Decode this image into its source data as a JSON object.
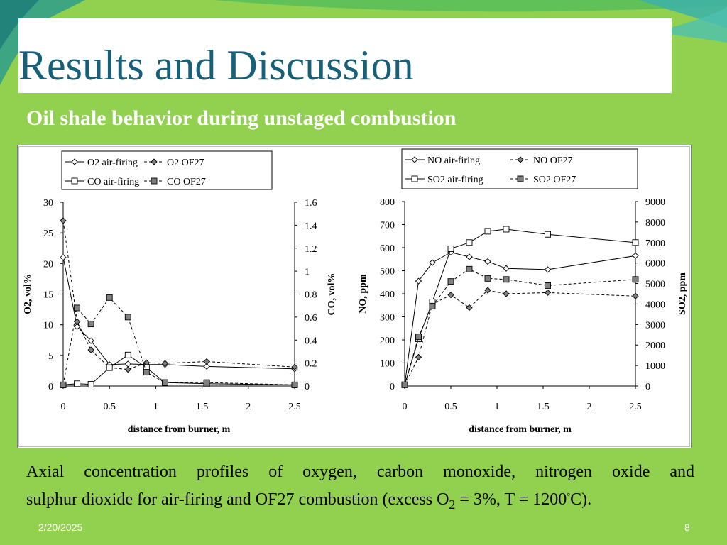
{
  "slide": {
    "title": "Results and Discussion",
    "subtitle": "Oil shale behavior during unstaged combustion",
    "caption_line1": "Axial concentration profiles of oxygen, carbon monoxide, nitrogen oxide and",
    "caption_line2_a": "sulphur dioxide for air-firing and OF27 combustion (excess O",
    "caption_line2_sub": "2",
    "caption_line2_b": " = 3%, T = 1200",
    "caption_line2_sup": "°",
    "caption_line2_c": "C).",
    "date": "2/20/2025",
    "page": "8",
    "colors": {
      "background": "#92d050",
      "title": "#17607a",
      "accent_teal": "#33aa99"
    }
  },
  "chart_data": [
    {
      "type": "line",
      "xlabel": "distance from burner, m",
      "ylabel": "O2, vol%",
      "y2label": "CO, vol%",
      "xlim": [
        0,
        2.5
      ],
      "xticks": [
        "0",
        "0.5",
        "1",
        "1.5",
        "2",
        "2.5"
      ],
      "ylim": [
        0,
        30
      ],
      "yticks": [
        "0",
        "5",
        "10",
        "15",
        "20",
        "25",
        "30"
      ],
      "y2lim": [
        0,
        1.6
      ],
      "y2ticks": [
        "0",
        "0.2",
        "0.4",
        "0.6",
        "0.8",
        "1",
        "1.2",
        "1.4",
        "1.6"
      ],
      "legend_position": "top",
      "series": [
        {
          "name": "O2 air-firing",
          "axis": "left",
          "marker": "diamond",
          "dash": false,
          "x": [
            0,
            0.15,
            0.3,
            0.5,
            0.7,
            0.9,
            1.1,
            1.55,
            2.5
          ],
          "y": [
            21,
            9.7,
            7.4,
            3.5,
            3.6,
            3.5,
            3.5,
            3.2,
            2.8
          ]
        },
        {
          "name": "O2 OF27",
          "axis": "left",
          "marker": "diamond-filled",
          "dash": true,
          "x": [
            0,
            0.15,
            0.3,
            0.5,
            0.7,
            0.9,
            1.1,
            1.55,
            2.5
          ],
          "y": [
            27,
            10.5,
            5.9,
            3.0,
            2.7,
            3.8,
            3.7,
            4.0,
            3.1
          ]
        },
        {
          "name": "CO air-firing",
          "axis": "right",
          "marker": "square",
          "dash": false,
          "x": [
            0,
            0.15,
            0.3,
            0.5,
            0.7,
            0.9,
            1.1,
            1.55,
            2.5
          ],
          "y": [
            0.01,
            0.02,
            0.015,
            0.16,
            0.27,
            0.16,
            0.03,
            0.02,
            0.01
          ]
        },
        {
          "name": "CO OF27",
          "axis": "right",
          "marker": "square-filled",
          "dash": true,
          "x": [
            0,
            0.15,
            0.3,
            0.5,
            0.7,
            0.9,
            1.1,
            1.55,
            2.5
          ],
          "y": [
            0.01,
            0.68,
            0.54,
            0.77,
            0.6,
            0.12,
            0.03,
            0.03,
            0.01
          ]
        }
      ]
    },
    {
      "type": "line",
      "xlabel": "distance from burner, m",
      "ylabel": "NO, ppm",
      "y2label": "SO2, ppm",
      "xlim": [
        0,
        2.5
      ],
      "xticks": [
        "0",
        "0.5",
        "1",
        "1.5",
        "2",
        "2.5"
      ],
      "ylim": [
        0,
        800
      ],
      "yticks": [
        "0",
        "100",
        "200",
        "300",
        "400",
        "500",
        "600",
        "700",
        "800"
      ],
      "y2lim": [
        0,
        9000
      ],
      "y2ticks": [
        "0",
        "1000",
        "2000",
        "3000",
        "4000",
        "5000",
        "6000",
        "7000",
        "8000",
        "9000"
      ],
      "legend_position": "top",
      "series": [
        {
          "name": "NO air-firing",
          "axis": "left",
          "marker": "diamond",
          "dash": false,
          "x": [
            0,
            0.15,
            0.3,
            0.5,
            0.7,
            0.9,
            1.1,
            1.55,
            2.5
          ],
          "y": [
            5,
            455,
            535,
            580,
            560,
            540,
            510,
            505,
            565
          ]
        },
        {
          "name": "NO OF27",
          "axis": "left",
          "marker": "diamond-filled",
          "dash": true,
          "x": [
            0,
            0.15,
            0.3,
            0.5,
            0.7,
            0.9,
            1.1,
            1.55,
            2.5
          ],
          "y": [
            5,
            125,
            355,
            395,
            340,
            415,
            400,
            405,
            390
          ]
        },
        {
          "name": "SO2 air-firing",
          "axis": "right",
          "marker": "square",
          "dash": false,
          "x": [
            0,
            0.15,
            0.3,
            0.5,
            0.7,
            0.9,
            1.1,
            1.55,
            2.5
          ],
          "y": [
            60,
            2300,
            4100,
            6700,
            7000,
            7550,
            7650,
            7400,
            7000
          ]
        },
        {
          "name": "SO2 OF27",
          "axis": "right",
          "marker": "square-filled",
          "dash": true,
          "x": [
            0,
            0.15,
            0.3,
            0.5,
            0.7,
            0.9,
            1.1,
            1.55,
            2.5
          ],
          "y": [
            60,
            2400,
            3900,
            5100,
            5700,
            5250,
            5200,
            4900,
            5200
          ]
        }
      ]
    }
  ]
}
